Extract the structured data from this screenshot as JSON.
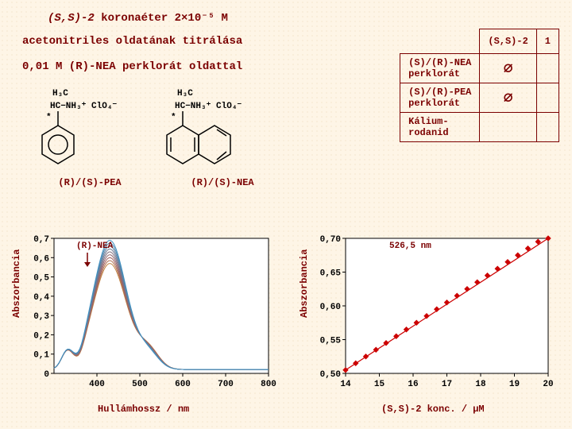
{
  "title1_prefix": "(S,S)-2",
  "title1_rest": " koronaéter 2×10⁻⁵ M",
  "title2": "acetonitriles oldatának titrálása",
  "title3": "0,01 M (R)-NEA perklorát oldattal",
  "table": {
    "header_col1": "",
    "header_col2": "(S,S)-2",
    "header_col3": "1",
    "rows": [
      {
        "label": "(S)/(R)-NEA\nperklorát",
        "c2": "∅",
        "c3": ""
      },
      {
        "label": "(S)/(R)-PEA\nperklorát",
        "c2": "∅",
        "c3": ""
      },
      {
        "label": "Kálium-\nrodanid",
        "c2": "",
        "c3": ""
      }
    ]
  },
  "chem": {
    "pea": {
      "label": "(R)/(S)-PEA",
      "lines": [
        "H₃C",
        "HC−NH₃⁺ ClO₄⁻",
        "*"
      ]
    },
    "nea": {
      "label": "(R)/(S)-NEA",
      "lines": [
        "H₃C",
        "HC−NH₃⁺ ClO₄⁻",
        "*"
      ]
    }
  },
  "left_chart": {
    "ylabel": "Abszorbancia",
    "xlabel": "Hullámhossz / nm",
    "annotation": "(R)-NEA",
    "xlim": [
      300,
      800
    ],
    "xticks": [
      400,
      500,
      600,
      700,
      800
    ],
    "ylim": [
      0.0,
      0.7
    ],
    "yticks": [
      0.0,
      0.1,
      0.2,
      0.3,
      0.4,
      0.5,
      0.6,
      0.7
    ],
    "ytick_labels": [
      "0",
      "0,1",
      "0,2",
      "0,3",
      "0,4",
      "0,5",
      "0,6",
      "0,7"
    ],
    "curve_colors": [
      "#c08040",
      "#b07050",
      "#a06060",
      "#906870",
      "#807080",
      "#707890",
      "#6080a0",
      "#5088b0",
      "#4090c0"
    ],
    "background_color": "#ffffff"
  },
  "right_chart": {
    "ylabel": "Abszorbancia",
    "xlabel": "(S,S)-2 konc. / µM",
    "annotation": "526,5 nm",
    "xlim": [
      14,
      20
    ],
    "xticks": [
      14,
      15,
      16,
      17,
      18,
      19,
      20
    ],
    "ylim": [
      0.5,
      0.7
    ],
    "yticks": [
      0.5,
      0.55,
      0.6,
      0.65,
      0.7
    ],
    "ytick_labels": [
      "0,50",
      "0,55",
      "0,60",
      "0,65",
      "0,70"
    ],
    "background_color": "#ffffff",
    "point_color": "#cc0000",
    "line_color": "#cc0000",
    "points_x": [
      14.0,
      14.3,
      14.6,
      14.9,
      15.2,
      15.5,
      15.8,
      16.1,
      16.4,
      16.7,
      17.0,
      17.3,
      17.6,
      17.9,
      18.2,
      18.5,
      18.8,
      19.1,
      19.4,
      19.7,
      20.0
    ],
    "points_y": [
      0.505,
      0.515,
      0.525,
      0.535,
      0.545,
      0.555,
      0.565,
      0.575,
      0.585,
      0.595,
      0.605,
      0.615,
      0.625,
      0.635,
      0.645,
      0.655,
      0.665,
      0.675,
      0.685,
      0.695,
      0.7
    ]
  }
}
